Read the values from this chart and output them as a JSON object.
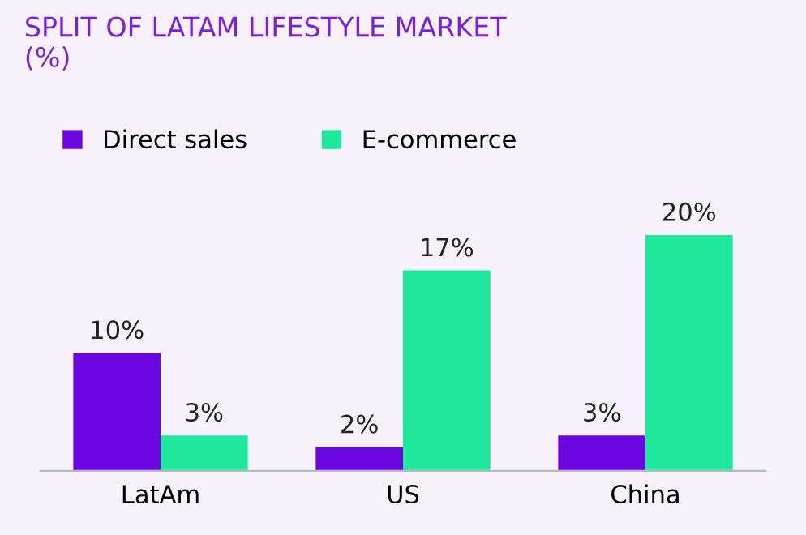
{
  "chart_data": {
    "type": "bar",
    "title": "SPLIT OF LATAM LIFESTYLE MARKET\n(%)",
    "categories": [
      "LatAm",
      "US",
      "China"
    ],
    "series": [
      {
        "name": "Direct sales",
        "color": "#6b06e0",
        "values": [
          10,
          2,
          3
        ],
        "value_labels": [
          "10%",
          "2%",
          "3%"
        ]
      },
      {
        "name": "E-commerce",
        "color": "#1ee89c",
        "values": [
          3,
          17,
          20
        ],
        "value_labels": [
          "3%",
          "17%",
          "20%"
        ]
      }
    ],
    "legend": "top left",
    "grid": false
  }
}
